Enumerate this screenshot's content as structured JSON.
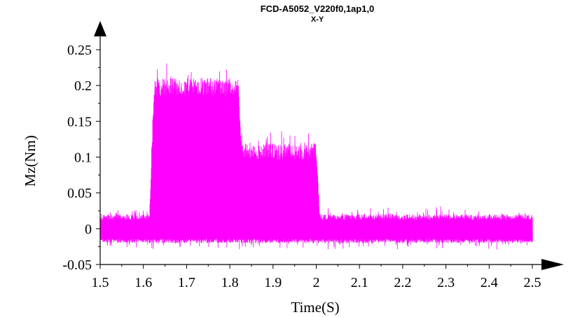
{
  "chart_data": {
    "type": "line",
    "title": "FCD-A5052_V220f0,1ap1,0",
    "subtitle": "X-Y",
    "xlabel": "Time(S)",
    "ylabel": "Mz(Nm)",
    "xlim": [
      1.5,
      2.5
    ],
    "ylim": [
      -0.05,
      0.25
    ],
    "x_ticks": [
      "1.5",
      "1.6",
      "1.7",
      "1.8",
      "1.9",
      "2",
      "2.1",
      "2.2",
      "2.3",
      "2.4",
      "2.5"
    ],
    "y_ticks": [
      "-0.05",
      "0",
      "0.05",
      "0.1",
      "0.15",
      "0.2",
      "0.25"
    ],
    "grid": false,
    "series": [
      {
        "color": "#ff00ff",
        "x_range": [
          1.5,
          2.5
        ],
        "segments": [
          {
            "x": [
              1.5,
              1.614
            ],
            "max": 0.02,
            "min": -0.02
          },
          {
            "x": [
              1.625,
              1.82
            ],
            "max": 0.21,
            "min": -0.02
          },
          {
            "x": [
              1.827,
              2.0
            ],
            "max": 0.12,
            "min": -0.02
          },
          {
            "x": [
              2.008,
              2.5
            ],
            "max": 0.02,
            "min": -0.02
          }
        ],
        "peak_max": 0.233,
        "peak_min": -0.03
      }
    ]
  }
}
